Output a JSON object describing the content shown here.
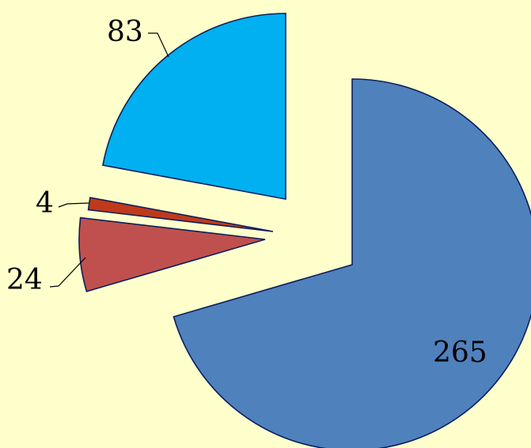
{
  "chart_data": {
    "type": "pie",
    "exploded": true,
    "values": [
      265,
      24,
      4,
      83
    ],
    "data_labels": [
      "265",
      "24",
      "4",
      "83"
    ],
    "colors": [
      "#4F81BD",
      "#C0504D",
      "#C0391B",
      "#00B0F0"
    ],
    "background": "#FFFFCC",
    "legend": "none"
  }
}
